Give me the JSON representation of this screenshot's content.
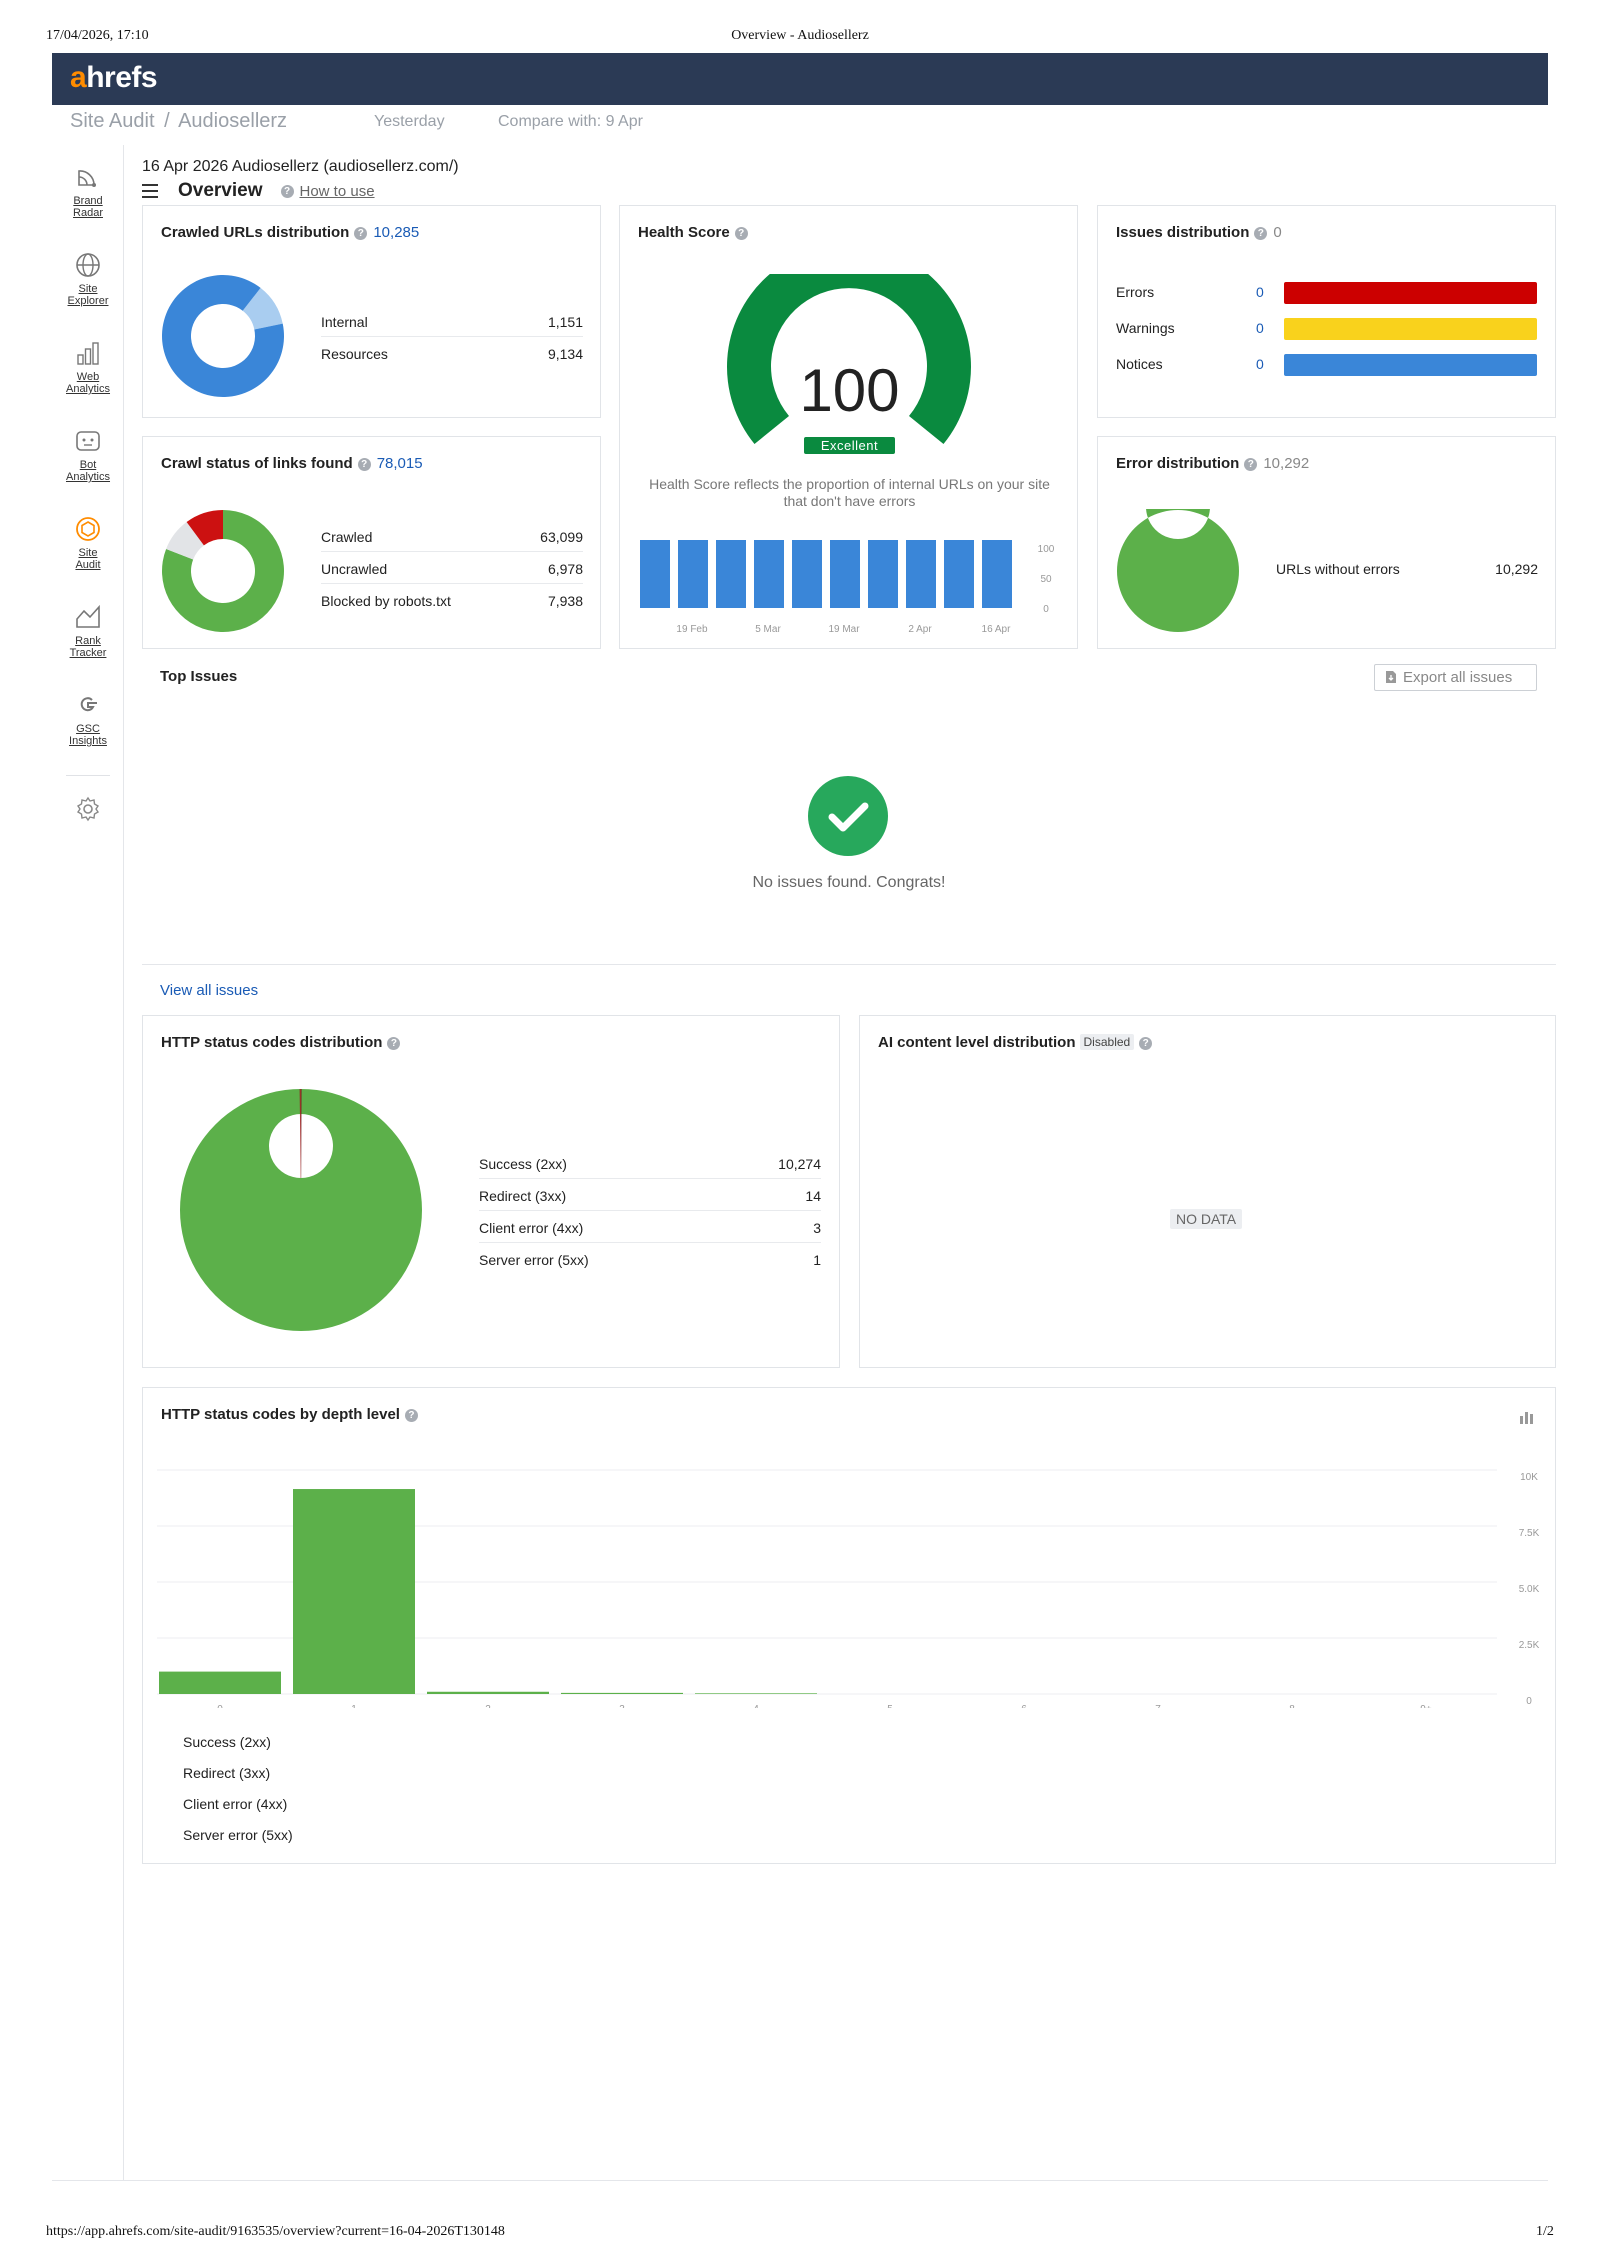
{
  "print": {
    "datetime": "17/04/2026, 17:10",
    "doc_title": "Overview - Audiosellerz",
    "url": "https://app.ahrefs.com/site-audit/9163535/overview?current=16-04-2026T130148",
    "page": "1/2"
  },
  "brand": {
    "logo_a": "a",
    "logo_rest": "hrefs"
  },
  "breadcrumb": {
    "section": "Site Audit",
    "sep": "/",
    "project": "Audiosellerz",
    "period": "Yesterday",
    "compare": "Compare with: 9 Apr"
  },
  "sidebar": {
    "items": [
      {
        "line1": "Brand",
        "line2": "Radar",
        "icon": "radar-icon"
      },
      {
        "line1": "Site",
        "line2": "Explorer",
        "icon": "globe-icon"
      },
      {
        "line1": "Web",
        "line2": "Analytics",
        "icon": "bars-icon"
      },
      {
        "line1": "Bot",
        "line2": "Analytics",
        "icon": "bot-icon"
      },
      {
        "line1": "Site",
        "line2": "Audit",
        "icon": "site-audit-icon"
      },
      {
        "line1": "Rank",
        "line2": "Tracker",
        "icon": "rank-icon"
      },
      {
        "line1": "GSC",
        "line2": "Insights",
        "icon": "google-icon"
      }
    ]
  },
  "header": {
    "crawl_info": "16 Apr 2026 Audiosellerz (audiosellerz.com/)",
    "title": "Overview",
    "how_to_use": "How to use"
  },
  "crawled_urls": {
    "title": "Crawled URLs distribution",
    "total": "10,285",
    "rows": [
      {
        "label": "Internal",
        "value": "1,151"
      },
      {
        "label": "Resources",
        "value": "9,134"
      }
    ],
    "chart_data": {
      "type": "pie",
      "labels": [
        "Internal",
        "Resources"
      ],
      "values": [
        1151,
        9134
      ],
      "colors": [
        "#a9cdf0",
        "#3a86d8"
      ]
    }
  },
  "crawl_status": {
    "title": "Crawl status of links found",
    "total": "78,015",
    "rows": [
      {
        "label": "Crawled",
        "value": "63,099"
      },
      {
        "label": "Uncrawled",
        "value": "6,978"
      },
      {
        "label": "Blocked by robots.txt",
        "value": "7,938"
      }
    ],
    "chart_data": {
      "type": "pie",
      "labels": [
        "Crawled",
        "Uncrawled",
        "Blocked by robots.txt"
      ],
      "values": [
        63099,
        6978,
        7938
      ],
      "colors": [
        "#5cb04a",
        "#e2e4e7",
        "#cc1111"
      ]
    }
  },
  "health": {
    "title": "Health Score",
    "score": "100",
    "rating": "Excellent",
    "description": "Health Score reflects the proportion of internal URLs on your site that don't have errors",
    "chart_data": {
      "type": "bar",
      "values": [
        100,
        100,
        100,
        100,
        100,
        100,
        100,
        100,
        100,
        100
      ],
      "xticks": [
        "19 Feb",
        "5 Mar",
        "19 Mar",
        "2 Apr",
        "16 Apr"
      ],
      "yticks": [
        "100",
        "50",
        "0"
      ],
      "ylim": [
        0,
        100
      ],
      "color": "#3a86d8"
    }
  },
  "issues": {
    "title": "Issues distribution",
    "total": "0",
    "rows": [
      {
        "label": "Errors",
        "value": "0",
        "color": "#cc0000"
      },
      {
        "label": "Warnings",
        "value": "0",
        "color": "#f9d21c"
      },
      {
        "label": "Notices",
        "value": "0",
        "color": "#3a86d8"
      }
    ]
  },
  "error_dist": {
    "title": "Error distribution",
    "total": "10,292",
    "rows": [
      {
        "label": "URLs without errors",
        "value": "10,292"
      }
    ],
    "chart_data": {
      "type": "pie",
      "labels": [
        "URLs without errors"
      ],
      "values": [
        10292
      ],
      "colors": [
        "#5cb04a"
      ]
    }
  },
  "top_issues": {
    "title": "Top Issues",
    "export": "Export all issues",
    "empty": "No issues found. Congrats!",
    "view_all": "View all issues"
  },
  "http_dist": {
    "title": "HTTP status codes distribution",
    "rows": [
      {
        "label": "Success (2xx)",
        "value": "10,274"
      },
      {
        "label": "Redirect (3xx)",
        "value": "14"
      },
      {
        "label": "Client error (4xx)",
        "value": "3"
      },
      {
        "label": "Server error (5xx)",
        "value": "1"
      }
    ],
    "chart_data": {
      "type": "pie",
      "labels": [
        "Success (2xx)",
        "Redirect (3xx)",
        "Client error (4xx)",
        "Server error (5xx)"
      ],
      "values": [
        10274,
        14,
        3,
        1
      ],
      "colors": [
        "#5cb04a",
        "#8b1a1a",
        "#cc3333",
        "#662222"
      ]
    }
  },
  "ai_content": {
    "title": "AI content level distribution",
    "badge": "Disabled",
    "nodata": "NO DATA"
  },
  "depth": {
    "title": "HTTP status codes by depth level",
    "legend": [
      "Success (2xx)",
      "Redirect (3xx)",
      "Client error (4xx)",
      "Server error (5xx)"
    ],
    "chart_data": {
      "type": "bar",
      "categories": [
        "0",
        "1",
        "2",
        "3",
        "4",
        "5",
        "6",
        "7",
        "8",
        "9+"
      ],
      "series": [
        {
          "name": "Success (2xx)",
          "values": [
            1000,
            9150,
            100,
            50,
            30,
            0,
            0,
            0,
            0,
            0
          ]
        }
      ],
      "yticks": [
        "10K",
        "7.5K",
        "5.0K",
        "2.5K",
        "0"
      ],
      "ylim": [
        0,
        10000
      ],
      "color": "#5cb04a"
    }
  }
}
